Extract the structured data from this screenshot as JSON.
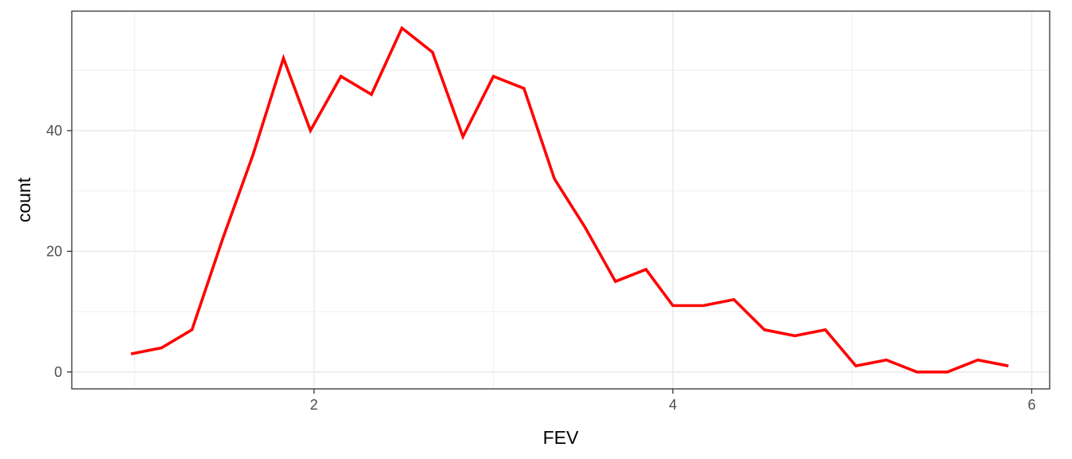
{
  "chart_data": {
    "type": "line",
    "title": "",
    "xlabel": "FEV",
    "ylabel": "count",
    "xlim": [
      0.65,
      6.1
    ],
    "ylim": [
      -2.8,
      59.8
    ],
    "x_ticks": [
      2,
      4,
      6
    ],
    "y_ticks": [
      0,
      20,
      40
    ],
    "x_minor": [
      1,
      3,
      5
    ],
    "y_minor": [
      10,
      30,
      50
    ],
    "grid": true,
    "legend": "none",
    "series": [
      {
        "color": "#ff0000",
        "x": [
          0.98,
          1.15,
          1.32,
          1.49,
          1.66,
          1.83,
          1.98,
          2.15,
          2.32,
          2.49,
          2.66,
          2.83,
          3.0,
          3.17,
          3.34,
          3.51,
          3.68,
          3.85,
          4.0,
          4.17,
          4.34,
          4.51,
          4.68,
          4.85,
          5.02,
          5.19,
          5.36,
          5.53,
          5.7,
          5.87
        ],
        "values": [
          3,
          4,
          7,
          22,
          36,
          52,
          40,
          49,
          46,
          57,
          53,
          39,
          49,
          47,
          32,
          24,
          15,
          17,
          11,
          11,
          12,
          7,
          6,
          7,
          1,
          2,
          0,
          0,
          2,
          1
        ]
      }
    ]
  }
}
